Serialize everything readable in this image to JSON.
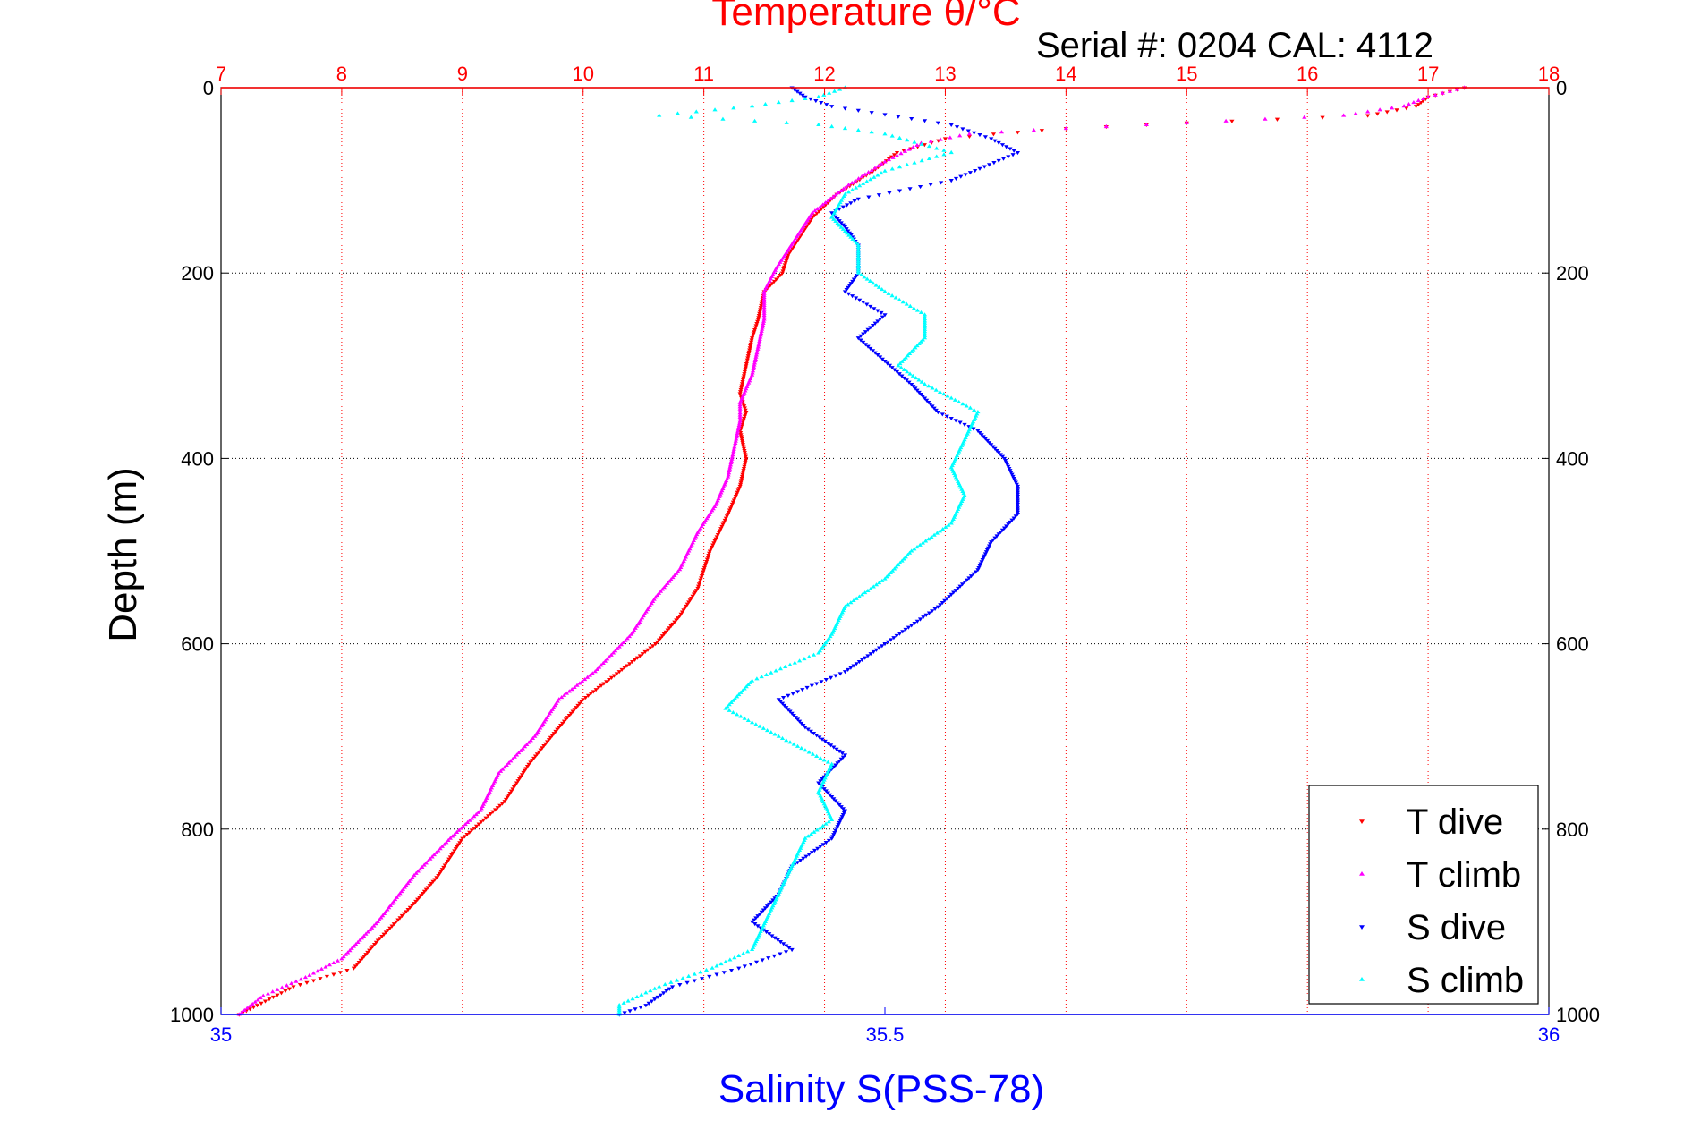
{
  "chart_data": {
    "type": "scatter",
    "title": "Temperature θ/°C",
    "annotation": "Serial #: 0204  CAL: 4112",
    "ylabel": "Depth (m)",
    "xlabel_bottom": "Salinity S(PSS-78)",
    "ylim": [
      1000,
      0
    ],
    "xlim_top": [
      7,
      18
    ],
    "xlim_bottom": [
      35,
      36
    ],
    "top_ticks": [
      "7",
      "8",
      "9",
      "10",
      "11",
      "12",
      "13",
      "14",
      "15",
      "16",
      "17",
      "18"
    ],
    "bottom_ticks": [
      "35",
      "35.5",
      "36"
    ],
    "depth_ticks": [
      "0",
      "200",
      "400",
      "600",
      "800",
      "1000"
    ],
    "grid": true,
    "legend_position": "bottom-right",
    "colors": {
      "top_axis": "#ff0000",
      "bottom_axis": "#0000ff",
      "grid_vertical": "#ff0000",
      "grid_horizontal": "#000000"
    },
    "series": [
      {
        "name": "T dive",
        "axis": "top",
        "marker": "triangle-down",
        "color": "#ff0000",
        "points": [
          [
            17.3,
            0
          ],
          [
            17.0,
            10
          ],
          [
            16.9,
            20
          ],
          [
            16.5,
            30
          ],
          [
            15.0,
            38
          ],
          [
            14.0,
            44
          ],
          [
            13.4,
            50
          ],
          [
            13.0,
            55
          ],
          [
            12.6,
            70
          ],
          [
            12.4,
            90
          ],
          [
            12.1,
            115
          ],
          [
            11.9,
            140
          ],
          [
            11.8,
            160
          ],
          [
            11.7,
            180
          ],
          [
            11.65,
            200
          ],
          [
            11.5,
            220
          ],
          [
            11.45,
            250
          ],
          [
            11.4,
            270
          ],
          [
            11.35,
            300
          ],
          [
            11.3,
            330
          ],
          [
            11.35,
            350
          ],
          [
            11.3,
            370
          ],
          [
            11.35,
            400
          ],
          [
            11.3,
            430
          ],
          [
            11.2,
            460
          ],
          [
            11.05,
            500
          ],
          [
            10.95,
            540
          ],
          [
            10.8,
            570
          ],
          [
            10.6,
            600
          ],
          [
            10.3,
            630
          ],
          [
            10.0,
            660
          ],
          [
            9.8,
            690
          ],
          [
            9.55,
            730
          ],
          [
            9.35,
            770
          ],
          [
            9.0,
            810
          ],
          [
            8.8,
            850
          ],
          [
            8.6,
            880
          ],
          [
            8.3,
            920
          ],
          [
            8.1,
            950
          ],
          [
            7.6,
            970
          ],
          [
            7.3,
            990
          ],
          [
            7.15,
            1000
          ]
        ]
      },
      {
        "name": "T climb",
        "axis": "top",
        "marker": "triangle-up",
        "color": "#ff00ff",
        "points": [
          [
            17.3,
            0
          ],
          [
            17.0,
            10
          ],
          [
            16.8,
            20
          ],
          [
            16.3,
            30
          ],
          [
            15.0,
            38
          ],
          [
            14.0,
            44
          ],
          [
            13.2,
            50
          ],
          [
            12.8,
            60
          ],
          [
            12.5,
            80
          ],
          [
            12.2,
            105
          ],
          [
            11.9,
            135
          ],
          [
            11.75,
            165
          ],
          [
            11.6,
            195
          ],
          [
            11.5,
            220
          ],
          [
            11.5,
            250
          ],
          [
            11.45,
            280
          ],
          [
            11.4,
            310
          ],
          [
            11.3,
            340
          ],
          [
            11.3,
            360
          ],
          [
            11.25,
            390
          ],
          [
            11.2,
            420
          ],
          [
            11.1,
            450
          ],
          [
            10.95,
            480
          ],
          [
            10.8,
            520
          ],
          [
            10.6,
            550
          ],
          [
            10.4,
            590
          ],
          [
            10.1,
            630
          ],
          [
            9.8,
            660
          ],
          [
            9.6,
            700
          ],
          [
            9.3,
            740
          ],
          [
            9.15,
            780
          ],
          [
            8.9,
            810
          ],
          [
            8.6,
            850
          ],
          [
            8.3,
            900
          ],
          [
            8.0,
            940
          ],
          [
            7.7,
            960
          ],
          [
            7.35,
            980
          ],
          [
            7.15,
            1000
          ]
        ]
      },
      {
        "name": "S dive",
        "axis": "bottom",
        "marker": "triangle-down",
        "color": "#0000ff",
        "points": [
          [
            35.43,
            0
          ],
          [
            35.44,
            10
          ],
          [
            35.46,
            20
          ],
          [
            35.55,
            40
          ],
          [
            35.58,
            55
          ],
          [
            35.6,
            70
          ],
          [
            35.55,
            100
          ],
          [
            35.48,
            120
          ],
          [
            35.46,
            135
          ],
          [
            35.47,
            150
          ],
          [
            35.48,
            170
          ],
          [
            35.48,
            200
          ],
          [
            35.47,
            220
          ],
          [
            35.5,
            245
          ],
          [
            35.48,
            270
          ],
          [
            35.5,
            295
          ],
          [
            35.52,
            320
          ],
          [
            35.54,
            350
          ],
          [
            35.57,
            370
          ],
          [
            35.59,
            400
          ],
          [
            35.6,
            430
          ],
          [
            35.6,
            460
          ],
          [
            35.58,
            490
          ],
          [
            35.57,
            520
          ],
          [
            35.54,
            560
          ],
          [
            35.5,
            600
          ],
          [
            35.47,
            630
          ],
          [
            35.42,
            660
          ],
          [
            35.44,
            690
          ],
          [
            35.47,
            720
          ],
          [
            35.45,
            750
          ],
          [
            35.47,
            780
          ],
          [
            35.46,
            810
          ],
          [
            35.43,
            840
          ],
          [
            35.42,
            870
          ],
          [
            35.4,
            900
          ],
          [
            35.43,
            930
          ],
          [
            35.39,
            950
          ],
          [
            35.34,
            970
          ],
          [
            35.32,
            990
          ],
          [
            35.3,
            1000
          ]
        ]
      },
      {
        "name": "S climb",
        "axis": "bottom",
        "marker": "triangle-up",
        "color": "#00ffff",
        "points": [
          [
            35.47,
            0
          ],
          [
            35.45,
            10
          ],
          [
            35.4,
            20
          ],
          [
            35.33,
            30
          ],
          [
            35.45,
            40
          ],
          [
            35.5,
            50
          ],
          [
            35.55,
            70
          ],
          [
            35.5,
            90
          ],
          [
            35.47,
            115
          ],
          [
            35.46,
            140
          ],
          [
            35.48,
            170
          ],
          [
            35.48,
            200
          ],
          [
            35.5,
            220
          ],
          [
            35.53,
            245
          ],
          [
            35.53,
            270
          ],
          [
            35.51,
            300
          ],
          [
            35.53,
            320
          ],
          [
            35.57,
            350
          ],
          [
            35.56,
            380
          ],
          [
            35.55,
            410
          ],
          [
            35.56,
            440
          ],
          [
            35.55,
            470
          ],
          [
            35.52,
            500
          ],
          [
            35.5,
            530
          ],
          [
            35.47,
            560
          ],
          [
            35.46,
            590
          ],
          [
            35.45,
            610
          ],
          [
            35.4,
            640
          ],
          [
            35.38,
            670
          ],
          [
            35.42,
            700
          ],
          [
            35.46,
            730
          ],
          [
            35.45,
            760
          ],
          [
            35.46,
            790
          ],
          [
            35.44,
            810
          ],
          [
            35.43,
            840
          ],
          [
            35.42,
            870
          ],
          [
            35.41,
            900
          ],
          [
            35.4,
            930
          ],
          [
            35.37,
            950
          ],
          [
            35.33,
            970
          ],
          [
            35.3,
            990
          ],
          [
            35.3,
            1000
          ]
        ]
      }
    ]
  }
}
